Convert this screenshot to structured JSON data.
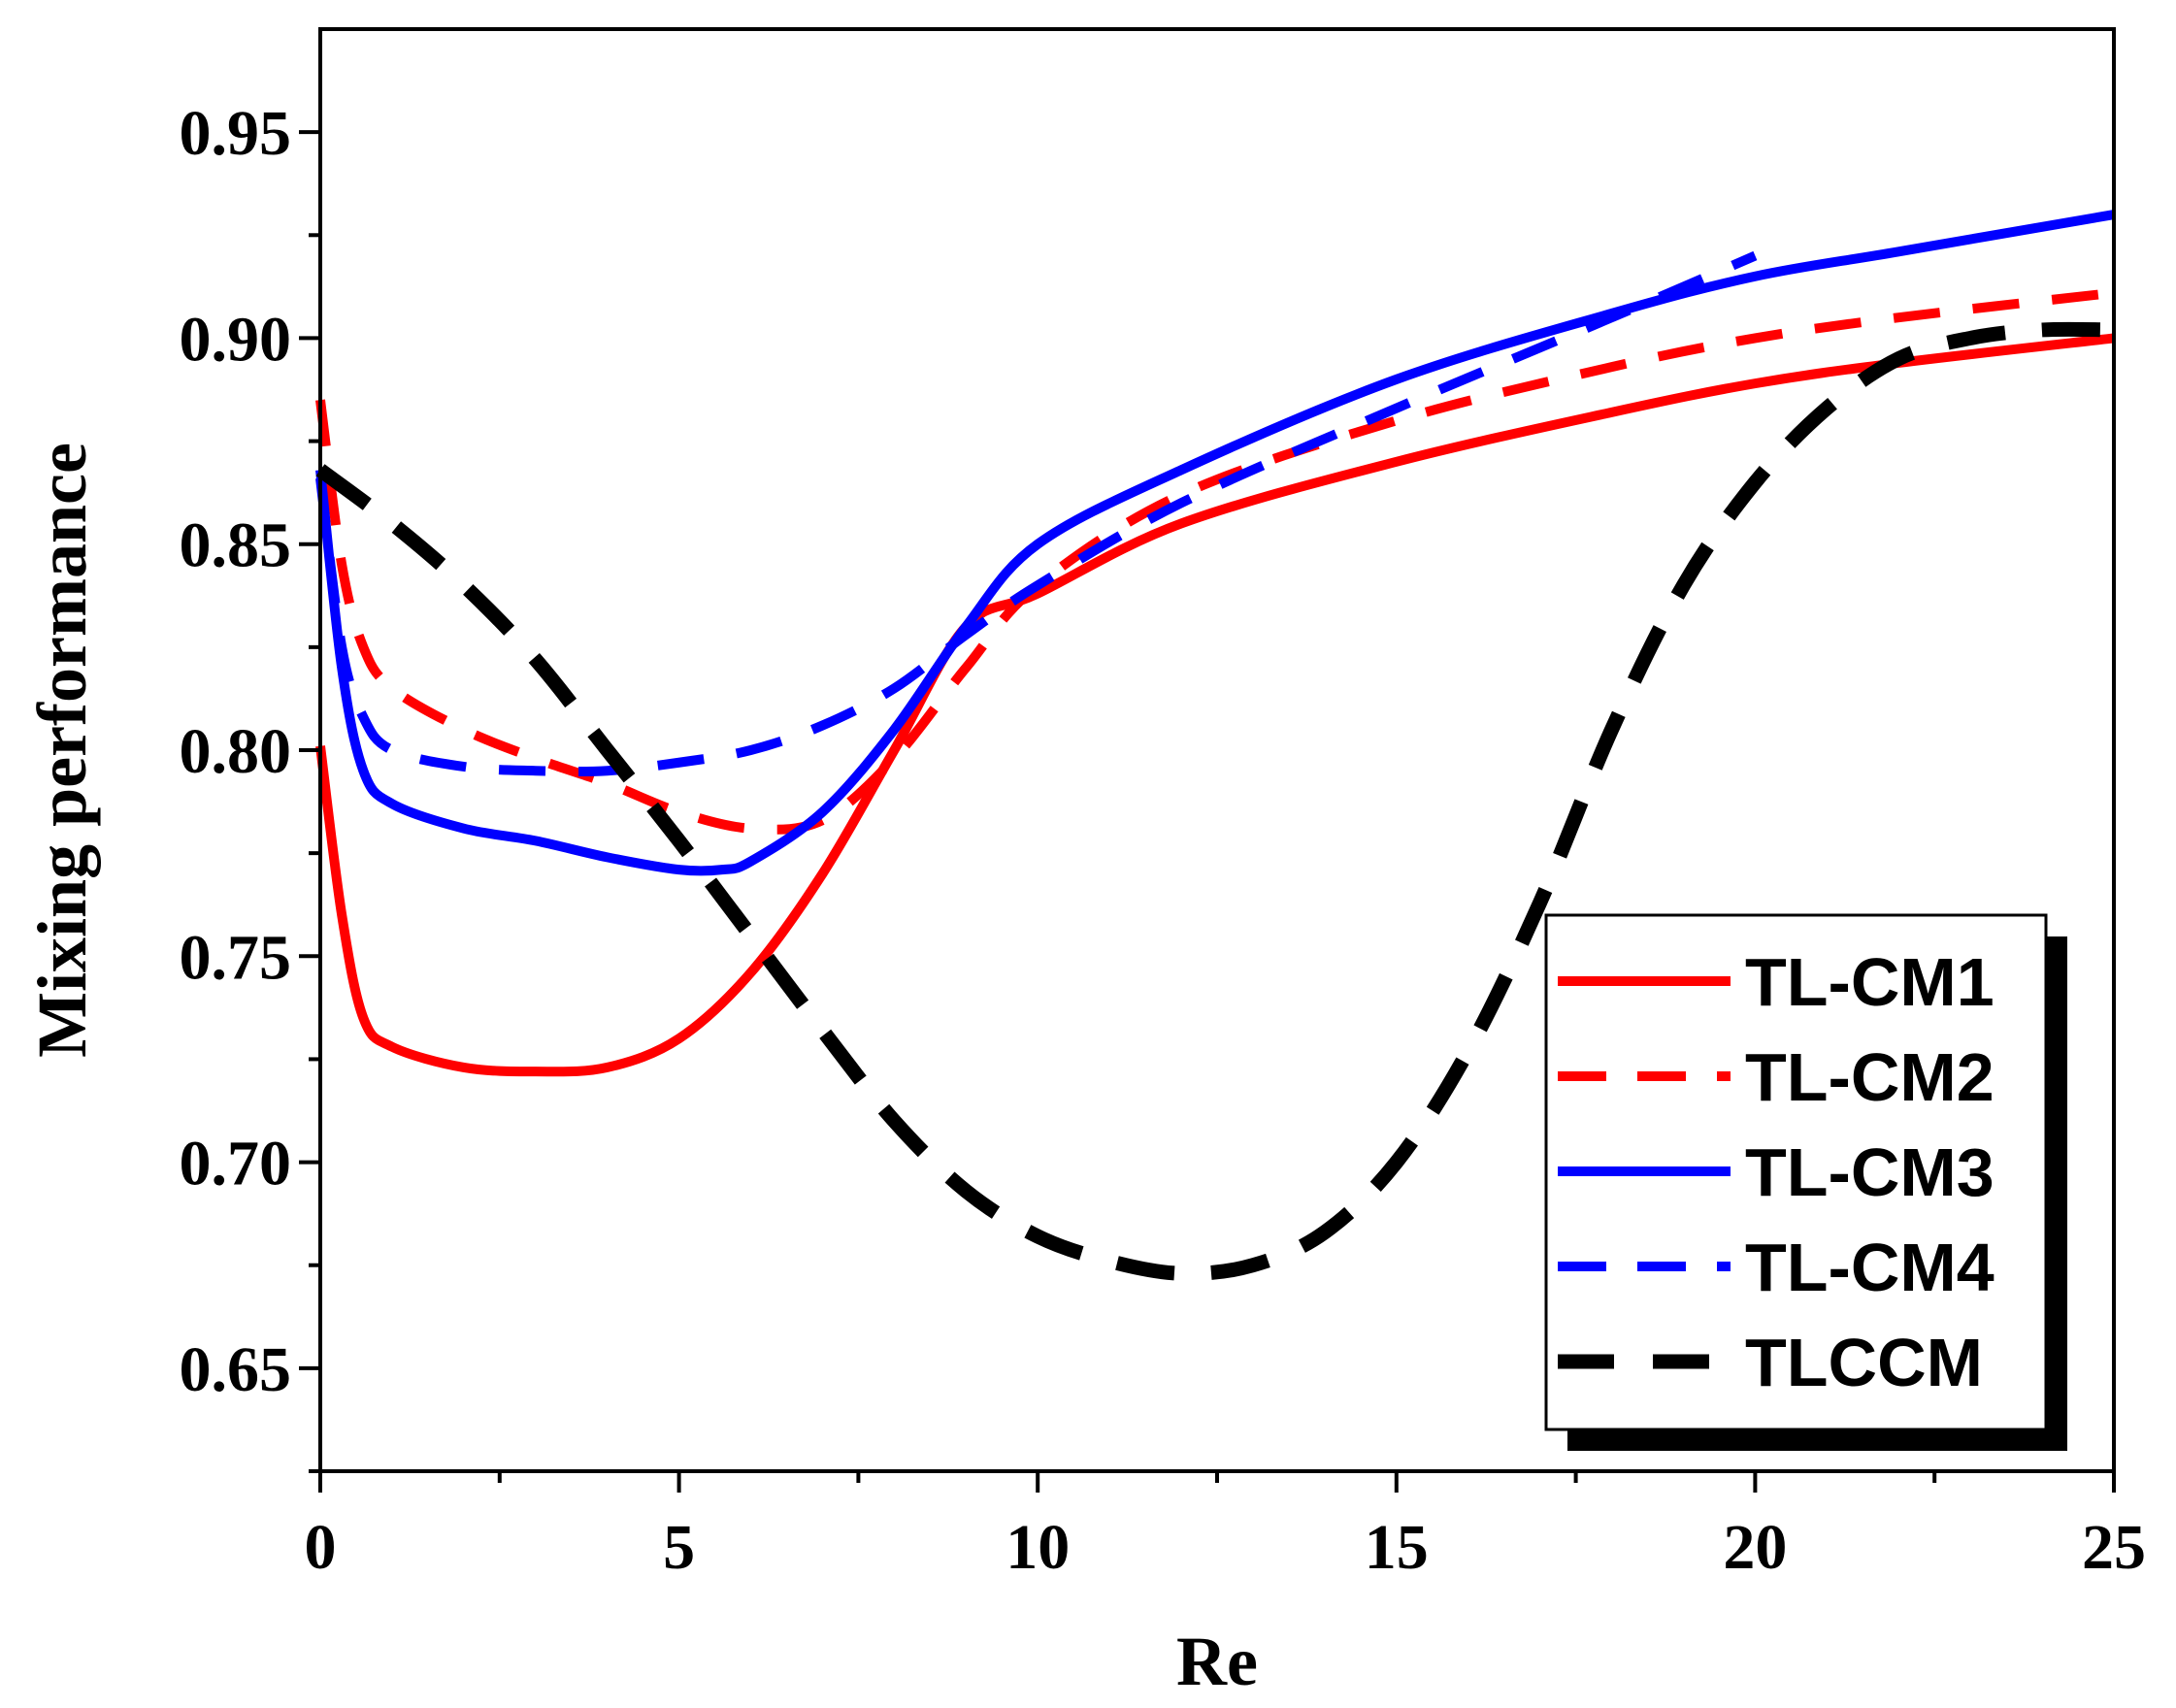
{
  "chart_data": {
    "type": "line",
    "title": "",
    "xlabel": "Re",
    "ylabel": "Mixing performance",
    "xlim": [
      0,
      25
    ],
    "ylim": [
      0.625,
      0.975
    ],
    "xticks": [
      0,
      5,
      10,
      15,
      20,
      25
    ],
    "xtick_labels": [
      "0",
      "5",
      "10",
      "15",
      "20",
      "25"
    ],
    "yticks": [
      0.65,
      0.7,
      0.75,
      0.8,
      0.85,
      0.9,
      0.95
    ],
    "ytick_labels": [
      "0.65",
      "0.70",
      "0.75",
      "0.80",
      "0.85",
      "0.90",
      "0.95"
    ],
    "grid": false,
    "legend_position": "bottom-right",
    "series": [
      {
        "name": "TL-CM1",
        "color": "#ff0000",
        "style": "solid",
        "x": [
          0,
          0.3,
          0.6,
          1,
          2,
          3,
          4,
          5,
          6,
          7,
          8,
          9,
          10,
          12,
          15,
          18,
          20,
          22,
          25
        ],
        "y": [
          0.801,
          0.76,
          0.735,
          0.728,
          0.723,
          0.722,
          0.723,
          0.73,
          0.746,
          0.77,
          0.8,
          0.83,
          0.838,
          0.855,
          0.87,
          0.882,
          0.889,
          0.894,
          0.9
        ]
      },
      {
        "name": "TL-CM2",
        "color": "#ff0000",
        "style": "dashed",
        "x": [
          0,
          0.3,
          0.6,
          1,
          2,
          3,
          4,
          5,
          6,
          7,
          8,
          9,
          10,
          12,
          15,
          18,
          20,
          22,
          25
        ],
        "y": [
          0.885,
          0.845,
          0.825,
          0.815,
          0.805,
          0.798,
          0.792,
          0.785,
          0.781,
          0.783,
          0.798,
          0.82,
          0.84,
          0.862,
          0.88,
          0.893,
          0.9,
          0.905,
          0.911
        ]
      },
      {
        "name": "TL-CM3",
        "color": "#0000ff",
        "style": "solid",
        "x": [
          0,
          0.3,
          0.6,
          1,
          2,
          3,
          4,
          5,
          5.6,
          6,
          7,
          8,
          9,
          10,
          12,
          15,
          18,
          20,
          22,
          25
        ],
        "y": [
          0.868,
          0.82,
          0.795,
          0.787,
          0.781,
          0.778,
          0.774,
          0.771,
          0.771,
          0.773,
          0.785,
          0.805,
          0.83,
          0.85,
          0.868,
          0.89,
          0.906,
          0.915,
          0.921,
          0.93
        ]
      },
      {
        "name": "TL-CM4",
        "color": "#0000ff",
        "style": "dashed",
        "x": [
          0,
          0.3,
          0.6,
          1,
          2,
          3,
          4,
          5,
          6,
          7,
          8,
          9,
          10,
          12,
          15,
          18,
          20
        ],
        "y": [
          0.866,
          0.825,
          0.808,
          0.8,
          0.796,
          0.795,
          0.795,
          0.797,
          0.8,
          0.806,
          0.815,
          0.828,
          0.84,
          0.86,
          0.883,
          0.905,
          0.92
        ]
      },
      {
        "name": "TLCCM",
        "color": "#000000",
        "style": "dashed",
        "x": [
          0,
          1,
          2,
          3,
          4,
          5,
          6,
          7,
          8,
          9,
          10,
          11,
          12,
          13,
          14,
          15,
          16,
          17,
          18,
          19,
          20,
          21,
          22,
          23,
          24,
          25
        ],
        "y": [
          0.868,
          0.855,
          0.84,
          0.822,
          0.8,
          0.778,
          0.755,
          0.732,
          0.71,
          0.693,
          0.682,
          0.676,
          0.673,
          0.675,
          0.683,
          0.7,
          0.727,
          0.763,
          0.805,
          0.84,
          0.865,
          0.883,
          0.895,
          0.9,
          0.902,
          0.902
        ]
      }
    ]
  }
}
